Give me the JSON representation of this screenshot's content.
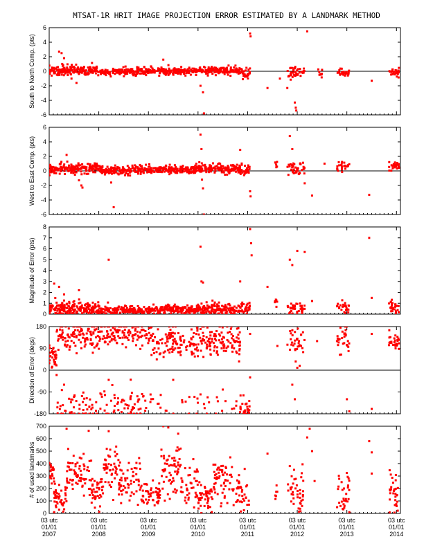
{
  "title": "MTSAT-1R HRIT IMAGE PROJECTION ERROR ESTIMATED BY A LANDMARK METHOD",
  "colors": {
    "points": "#ff0000",
    "axes": "#000000",
    "background": "#ffffff"
  },
  "x_ticks": [
    {
      "l1": "03 utc",
      "l2": "01/01",
      "l3": "2007",
      "t": 0
    },
    {
      "l1": "03 utc",
      "l2": "01/01",
      "l3": "2008",
      "t": 1
    },
    {
      "l1": "03 utc",
      "l2": "01/01",
      "l3": "2009",
      "t": 2
    },
    {
      "l1": "03 utc",
      "l2": "01/01",
      "l3": "2010",
      "t": 3
    },
    {
      "l1": "03 utc",
      "l2": "01/01",
      "l3": "2011",
      "t": 4
    },
    {
      "l1": "03 utc",
      "l2": "01/01",
      "l3": "2012",
      "t": 5
    },
    {
      "l1": "03 utc",
      "l2": "01/01",
      "l3": "2013",
      "t": 6
    },
    {
      "l1": "03 utc",
      "l2": "01/01",
      "l3": "2014",
      "t": 7
    }
  ],
  "chart_data": [
    {
      "type": "scatter",
      "ylabel": "South to North Comp. (pts)",
      "ylim": [
        -6,
        6
      ],
      "yticks": [
        6,
        4,
        2,
        0,
        -2,
        -4,
        -6
      ],
      "zero_line": true,
      "segments": [
        {
          "x0": 0.0,
          "x1": 1.0,
          "mean": 0.1,
          "spread": 0.35,
          "n": 180
        },
        {
          "x0": 1.0,
          "x1": 2.0,
          "mean": -0.05,
          "spread": 0.25,
          "n": 170
        },
        {
          "x0": 2.0,
          "x1": 3.0,
          "mean": 0.0,
          "spread": 0.25,
          "n": 170
        },
        {
          "x0": 3.0,
          "x1": 3.85,
          "mean": 0.05,
          "spread": 0.25,
          "n": 150
        },
        {
          "x0": 3.85,
          "x1": 4.05,
          "mean": -0.3,
          "spread": 0.35,
          "n": 30
        },
        {
          "x0": 4.8,
          "x1": 5.15,
          "mean": -0.1,
          "spread": 0.4,
          "n": 40
        },
        {
          "x0": 5.4,
          "x1": 5.5,
          "mean": -0.3,
          "spread": 0.3,
          "n": 8
        },
        {
          "x0": 5.8,
          "x1": 6.05,
          "mean": -0.1,
          "spread": 0.3,
          "n": 25
        },
        {
          "x0": 6.85,
          "x1": 7.05,
          "mean": -0.2,
          "spread": 0.3,
          "n": 25
        }
      ],
      "points": [
        [
          0.2,
          2.7
        ],
        [
          0.25,
          2.5
        ],
        [
          0.3,
          1.8
        ],
        [
          0.45,
          -1.0
        ],
        [
          0.55,
          -1.6
        ],
        [
          2.3,
          1.6
        ],
        [
          3.05,
          -2.0
        ],
        [
          3.1,
          -2.9
        ],
        [
          3.12,
          -5.8
        ],
        [
          4.05,
          5.2
        ],
        [
          4.06,
          4.8
        ],
        [
          4.4,
          -2.3
        ],
        [
          4.65,
          -1.0
        ],
        [
          4.8,
          -2.3
        ],
        [
          4.95,
          -4.3
        ],
        [
          4.97,
          -5.0
        ],
        [
          4.98,
          -5.4
        ],
        [
          5.2,
          5.5
        ],
        [
          5.5,
          0.2
        ],
        [
          6.5,
          -1.3
        ]
      ]
    },
    {
      "type": "scatter",
      "ylabel": "West to East Comp. (pts)",
      "ylim": [
        -6,
        6
      ],
      "yticks": [
        6,
        4,
        2,
        0,
        -2,
        -4,
        -6
      ],
      "zero_line": true,
      "segments": [
        {
          "x0": 0.0,
          "x1": 1.0,
          "mean": 0.3,
          "spread": 0.35,
          "n": 180
        },
        {
          "x0": 1.0,
          "x1": 2.0,
          "mean": 0.1,
          "spread": 0.3,
          "n": 170
        },
        {
          "x0": 2.0,
          "x1": 3.0,
          "mean": 0.2,
          "spread": 0.3,
          "n": 170
        },
        {
          "x0": 3.0,
          "x1": 3.85,
          "mean": 0.3,
          "spread": 0.3,
          "n": 150
        },
        {
          "x0": 3.85,
          "x1": 4.05,
          "mean": 0.1,
          "spread": 0.4,
          "n": 30
        },
        {
          "x0": 4.55,
          "x1": 4.6,
          "mean": 0.8,
          "spread": 0.3,
          "n": 6
        },
        {
          "x0": 4.8,
          "x1": 5.15,
          "mean": 0.4,
          "spread": 0.5,
          "n": 40
        },
        {
          "x0": 5.8,
          "x1": 6.05,
          "mean": 0.5,
          "spread": 0.4,
          "n": 25
        },
        {
          "x0": 6.85,
          "x1": 7.05,
          "mean": 0.6,
          "spread": 0.3,
          "n": 25
        }
      ],
      "points": [
        [
          0.35,
          2.2
        ],
        [
          0.6,
          -1.3
        ],
        [
          0.65,
          -2.0
        ],
        [
          0.67,
          -2.3
        ],
        [
          1.25,
          -1.6
        ],
        [
          1.3,
          -5.0
        ],
        [
          3.05,
          5.0
        ],
        [
          3.07,
          3.0
        ],
        [
          3.08,
          -1.2
        ],
        [
          3.1,
          -2.4
        ],
        [
          3.12,
          -6.0
        ],
        [
          3.85,
          2.9
        ],
        [
          4.05,
          -2.8
        ],
        [
          4.06,
          -3.5
        ],
        [
          4.85,
          4.8
        ],
        [
          4.9,
          3.0
        ],
        [
          5.15,
          -1.7
        ],
        [
          5.3,
          -3.4
        ],
        [
          5.55,
          1.0
        ],
        [
          6.45,
          -3.3
        ]
      ]
    },
    {
      "type": "scatter",
      "ylabel": "Magnitude of Error (pts)",
      "ylim": [
        0,
        8
      ],
      "yticks": [
        8,
        7,
        6,
        5,
        4,
        3,
        2,
        1,
        0
      ],
      "zero_line": false,
      "segments": [
        {
          "x0": 0.0,
          "x1": 1.0,
          "mean": 0.5,
          "spread": 0.3,
          "n": 180
        },
        {
          "x0": 1.0,
          "x1": 2.0,
          "mean": 0.35,
          "spread": 0.2,
          "n": 170
        },
        {
          "x0": 2.0,
          "x1": 3.0,
          "mean": 0.4,
          "spread": 0.2,
          "n": 170
        },
        {
          "x0": 3.0,
          "x1": 3.85,
          "mean": 0.45,
          "spread": 0.25,
          "n": 150
        },
        {
          "x0": 3.85,
          "x1": 4.05,
          "mean": 0.6,
          "spread": 0.3,
          "n": 30
        },
        {
          "x0": 4.55,
          "x1": 4.6,
          "mean": 1.0,
          "spread": 0.2,
          "n": 6
        },
        {
          "x0": 4.8,
          "x1": 5.15,
          "mean": 0.6,
          "spread": 0.35,
          "n": 40
        },
        {
          "x0": 5.8,
          "x1": 6.05,
          "mean": 0.7,
          "spread": 0.35,
          "n": 25
        },
        {
          "x0": 6.85,
          "x1": 7.05,
          "mean": 0.7,
          "spread": 0.3,
          "n": 25
        }
      ],
      "points": [
        [
          0.1,
          2.8
        ],
        [
          0.2,
          2.5
        ],
        [
          0.3,
          1.8
        ],
        [
          0.6,
          2.2
        ],
        [
          1.2,
          5.0
        ],
        [
          3.05,
          6.2
        ],
        [
          3.07,
          3.0
        ],
        [
          3.1,
          2.9
        ],
        [
          4.05,
          7.8
        ],
        [
          4.07,
          6.5
        ],
        [
          4.08,
          5.4
        ],
        [
          3.85,
          3.0
        ],
        [
          4.4,
          2.5
        ],
        [
          4.85,
          5.0
        ],
        [
          4.9,
          4.5
        ],
        [
          5.0,
          5.8
        ],
        [
          5.15,
          5.7
        ],
        [
          5.3,
          1.2
        ],
        [
          6.45,
          7.0
        ],
        [
          6.5,
          1.5
        ]
      ]
    },
    {
      "type": "scatter",
      "ylabel": "Direction of Error (degs)",
      "ylim": [
        -180,
        180
      ],
      "yticks": [
        180,
        90,
        0,
        -90,
        -180
      ],
      "zero_line": true,
      "segments": [
        {
          "x0": 0.0,
          "x1": 0.15,
          "mean": 60,
          "spread": 25,
          "n": 30
        },
        {
          "x0": 0.15,
          "x1": 1.0,
          "mean": 140,
          "spread": 30,
          "n": 110
        },
        {
          "x0": 0.15,
          "x1": 1.0,
          "mean": -150,
          "spread": 25,
          "n": 50
        },
        {
          "x0": 1.0,
          "x1": 2.0,
          "mean": 145,
          "spread": 25,
          "n": 110
        },
        {
          "x0": 1.0,
          "x1": 2.0,
          "mean": -140,
          "spread": 35,
          "n": 60
        },
        {
          "x0": 2.0,
          "x1": 3.0,
          "mean": 120,
          "spread": 30,
          "n": 130
        },
        {
          "x0": 2.0,
          "x1": 3.0,
          "mean": -150,
          "spread": 25,
          "n": 20
        },
        {
          "x0": 3.0,
          "x1": 3.85,
          "mean": 120,
          "spread": 30,
          "n": 120
        },
        {
          "x0": 3.0,
          "x1": 3.85,
          "mean": -150,
          "spread": 25,
          "n": 15
        },
        {
          "x0": 3.85,
          "x1": 4.05,
          "mean": -160,
          "spread": 20,
          "n": 25
        },
        {
          "x0": 4.8,
          "x1": 5.15,
          "mean": 120,
          "spread": 35,
          "n": 35
        },
        {
          "x0": 5.8,
          "x1": 6.05,
          "mean": 125,
          "spread": 30,
          "n": 30
        },
        {
          "x0": 6.85,
          "x1": 7.05,
          "mean": 115,
          "spread": 20,
          "n": 30
        }
      ],
      "points": [
        [
          0.15,
          -20
        ],
        [
          0.3,
          -60
        ],
        [
          0.5,
          -110
        ],
        [
          1.2,
          -40
        ],
        [
          2.5,
          -40
        ],
        [
          3.05,
          -100
        ],
        [
          3.5,
          -80
        ],
        [
          4.05,
          -30
        ],
        [
          4.05,
          150
        ],
        [
          4.6,
          100
        ],
        [
          4.9,
          -60
        ],
        [
          4.95,
          -120
        ],
        [
          5.0,
          10
        ],
        [
          5.4,
          120
        ],
        [
          6.0,
          -120
        ],
        [
          6.05,
          -170
        ],
        [
          6.5,
          150
        ],
        [
          6.5,
          -160
        ]
      ]
    },
    {
      "type": "scatter",
      "ylabel": "# of used landmarks",
      "ylim": [
        0,
        700
      ],
      "yticks": [
        700,
        600,
        500,
        400,
        300,
        200,
        100,
        0
      ],
      "zero_line": false,
      "segments": [
        {
          "x0": 0.0,
          "x1": 0.1,
          "mean": 330,
          "spread": 60,
          "n": 20
        },
        {
          "x0": 0.1,
          "x1": 0.35,
          "mean": 110,
          "spread": 60,
          "n": 40
        },
        {
          "x0": 0.35,
          "x1": 0.85,
          "mean": 320,
          "spread": 80,
          "n": 70
        },
        {
          "x0": 0.85,
          "x1": 1.1,
          "mean": 180,
          "spread": 70,
          "n": 40
        },
        {
          "x0": 1.1,
          "x1": 1.4,
          "mean": 360,
          "spread": 90,
          "n": 45
        },
        {
          "x0": 1.4,
          "x1": 1.85,
          "mean": 250,
          "spread": 80,
          "n": 60
        },
        {
          "x0": 1.85,
          "x1": 2.25,
          "mean": 150,
          "spread": 50,
          "n": 55
        },
        {
          "x0": 2.25,
          "x1": 2.65,
          "mean": 330,
          "spread": 100,
          "n": 60
        },
        {
          "x0": 2.65,
          "x1": 3.0,
          "mean": 230,
          "spread": 80,
          "n": 40
        },
        {
          "x0": 3.0,
          "x1": 3.3,
          "mean": 120,
          "spread": 60,
          "n": 45
        },
        {
          "x0": 3.3,
          "x1": 3.7,
          "mean": 280,
          "spread": 90,
          "n": 55
        },
        {
          "x0": 3.7,
          "x1": 4.05,
          "mean": 180,
          "spread": 80,
          "n": 40
        },
        {
          "x0": 4.55,
          "x1": 4.6,
          "mean": 150,
          "spread": 40,
          "n": 6
        },
        {
          "x0": 4.8,
          "x1": 5.15,
          "mean": 180,
          "spread": 90,
          "n": 40
        },
        {
          "x0": 5.8,
          "x1": 6.05,
          "mean": 150,
          "spread": 90,
          "n": 30
        },
        {
          "x0": 6.85,
          "x1": 7.05,
          "mean": 180,
          "spread": 90,
          "n": 30
        }
      ],
      "points": [
        [
          0.35,
          680
        ],
        [
          1.2,
          660
        ],
        [
          2.3,
          700
        ],
        [
          2.4,
          690
        ],
        [
          2.6,
          640
        ],
        [
          3.65,
          450
        ],
        [
          4.4,
          480
        ],
        [
          4.85,
          380
        ],
        [
          5.2,
          610
        ],
        [
          5.25,
          680
        ],
        [
          5.3,
          500
        ],
        [
          5.35,
          260
        ],
        [
          6.45,
          580
        ],
        [
          6.5,
          490
        ],
        [
          6.5,
          320
        ],
        [
          6.05,
          10
        ],
        [
          0.1,
          10
        ],
        [
          0.2,
          30
        ]
      ]
    }
  ]
}
